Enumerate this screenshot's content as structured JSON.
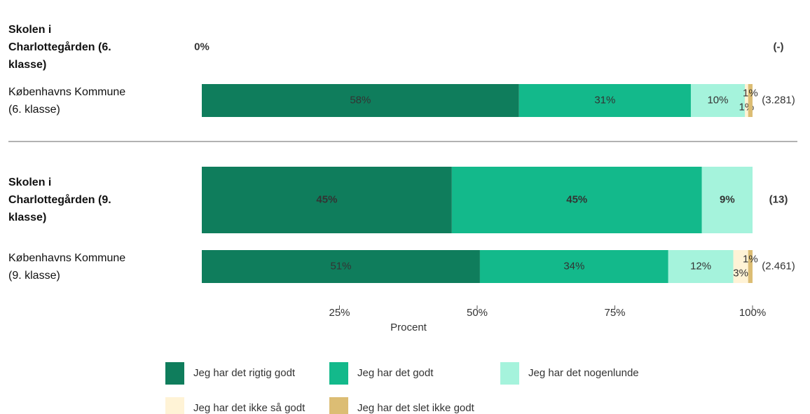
{
  "chart_data": {
    "type": "stacked_barh",
    "categories": [
      "Skolen i Charlottegården (6. klasse)",
      "Københavns Kommune (6. klasse)",
      "Skolen i Charlottegården (9. klasse)",
      "Københavns Kommune (9. klasse)"
    ],
    "bold_rows": [
      true,
      false,
      true,
      false
    ],
    "n_labels": [
      "(-)",
      "(3.281)",
      "(13)",
      "(2.461)"
    ],
    "series": [
      {
        "name": "Jeg har det rigtig godt",
        "color": "#0f7d5c",
        "values": [
          0,
          57.6,
          45.4,
          50.5
        ],
        "value_labels": [
          "0%",
          "58%",
          "45%",
          "51%"
        ]
      },
      {
        "name": "Jeg har det godt",
        "color": "#13b98b",
        "values": [
          null,
          31.2,
          45.4,
          34.2
        ],
        "value_labels": [
          null,
          "31%",
          "45%",
          "34%"
        ]
      },
      {
        "name": "Jeg har det nogenlunde",
        "color": "#a5f3dc",
        "values": [
          null,
          9.8,
          9.2,
          11.8
        ],
        "value_labels": [
          null,
          "10%",
          "9%",
          "12%"
        ]
      },
      {
        "name": "Jeg har det ikke så godt",
        "color": "#fff3d6",
        "values": [
          null,
          0.6,
          null,
          2.7
        ],
        "value_labels": [
          null,
          "1%",
          null,
          "3%"
        ]
      },
      {
        "name": "Jeg har det slet ikke godt",
        "color": "#dcbd74",
        "values": [
          null,
          0.8,
          null,
          0.8
        ],
        "value_labels": [
          null,
          "1%",
          null,
          "1%"
        ]
      }
    ],
    "xlabel": "Procent",
    "xlim": [
      0,
      100
    ],
    "xticks": [
      {
        "value": 25,
        "label": "25%"
      },
      {
        "value": 50,
        "label": "50%"
      },
      {
        "value": 75,
        "label": "75%"
      },
      {
        "value": 100,
        "label": "100%"
      }
    ]
  }
}
